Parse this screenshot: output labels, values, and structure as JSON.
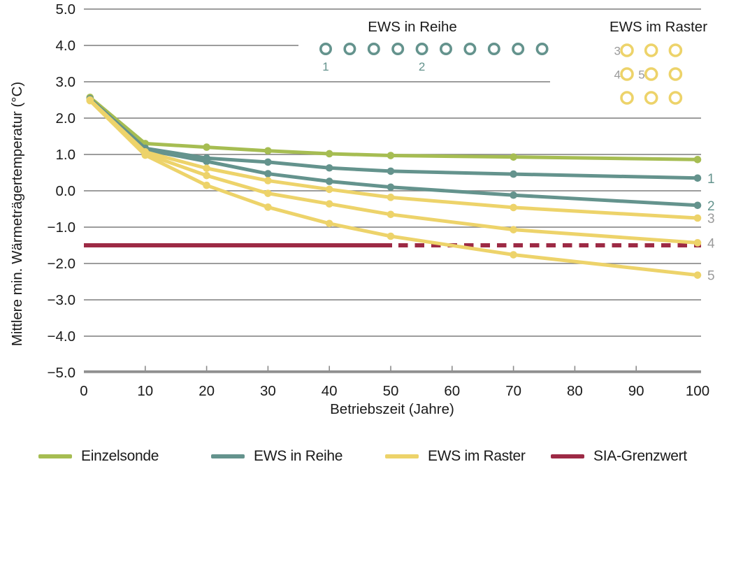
{
  "chart_data": {
    "type": "line",
    "title": "",
    "xlabel": "Betriebszeit (Jahre)",
    "ylabel": "Mittlere min. Wärmeträgertemperatur (°C)",
    "xlim": [
      0,
      100
    ],
    "ylim": [
      -5.0,
      5.0
    ],
    "grid": "horizontal",
    "x_ticks": [
      0,
      10,
      20,
      30,
      40,
      50,
      60,
      70,
      80,
      90,
      100
    ],
    "x_tick_labels": [
      "0",
      "10",
      "20",
      "30",
      "40",
      "50",
      "60",
      "70",
      "80",
      "90",
      "100"
    ],
    "y_ticks": [
      5.0,
      4.0,
      3.0,
      2.0,
      1.0,
      0.0,
      -1.0,
      -2.0,
      -3.0,
      -4.0,
      -5.0
    ],
    "y_tick_labels": [
      "5.0",
      "4.0",
      "3.0",
      "2.0",
      "1.0",
      "0.0",
      "−1.0",
      "−2.0",
      "−3.0",
      "−4.0",
      "−5.0"
    ],
    "x": [
      1,
      10,
      20,
      30,
      40,
      50,
      70,
      100
    ],
    "series": [
      {
        "name": "Einzelsonde",
        "color": "#a6bd52",
        "values": [
          2.57,
          1.3,
          1.2,
          1.1,
          1.02,
          0.97,
          0.93,
          0.86
        ],
        "end_label": "",
        "end_label_color": ""
      },
      {
        "name": "EWS in Reihe 1",
        "color": "#64938d",
        "values": [
          2.53,
          1.17,
          0.9,
          0.79,
          0.63,
          0.54,
          0.46,
          0.35
        ],
        "end_label": "1",
        "end_label_color": "#64938d"
      },
      {
        "name": "EWS in Reihe 2",
        "color": "#64938d",
        "values": [
          2.53,
          1.13,
          0.81,
          0.47,
          0.26,
          0.1,
          -0.12,
          -0.4
        ],
        "end_label": "2",
        "end_label_color": "#64938d"
      },
      {
        "name": "EWS im Raster 3",
        "color": "#edd36a",
        "values": [
          2.5,
          1.07,
          0.62,
          0.28,
          0.04,
          -0.18,
          -0.46,
          -0.75
        ],
        "end_label": "3",
        "end_label_color": "#9b9b9b"
      },
      {
        "name": "EWS im Raster 4",
        "color": "#edd36a",
        "values": [
          2.5,
          1.02,
          0.42,
          -0.07,
          -0.36,
          -0.65,
          -1.07,
          -1.43
        ],
        "end_label": "4",
        "end_label_color": "#9b9b9b"
      },
      {
        "name": "EWS im Raster 5",
        "color": "#edd36a",
        "values": [
          2.48,
          0.98,
          0.15,
          -0.45,
          -0.9,
          -1.25,
          -1.76,
          -2.32
        ],
        "end_label": "5",
        "end_label_color": "#9b9b9b"
      }
    ],
    "reference_line": {
      "name": "SIA-Grenzwert",
      "value": -1.5,
      "color": "#9d2a45",
      "solid_until_x": 50,
      "dashed_after": true
    }
  },
  "insets": {
    "reihe": {
      "title": "EWS in Reihe",
      "circle_count": 10,
      "circle_color": "#64938d",
      "labels": [
        {
          "text": "1",
          "circle_index": 0,
          "color": "#64938d"
        },
        {
          "text": "2",
          "circle_index": 4,
          "color": "#64938d"
        }
      ]
    },
    "raster": {
      "title": "EWS im Raster",
      "rows": 3,
      "cols": 3,
      "circle_color": "#edd36a",
      "label_color": "#9b9b9b",
      "labels": [
        {
          "text": "3",
          "row": 0,
          "col": 0
        },
        {
          "text": "4",
          "row": 1,
          "col": 0
        },
        {
          "text": "5",
          "row": 1,
          "col": 1
        }
      ]
    }
  },
  "legend": {
    "items": [
      {
        "label": "Einzelsonde",
        "color": "#a6bd52"
      },
      {
        "label": "EWS in Reihe",
        "color": "#64938d"
      },
      {
        "label": "EWS im Raster",
        "color": "#edd36a"
      },
      {
        "label": "SIA-Grenzwert",
        "color": "#9d2a45"
      }
    ]
  }
}
